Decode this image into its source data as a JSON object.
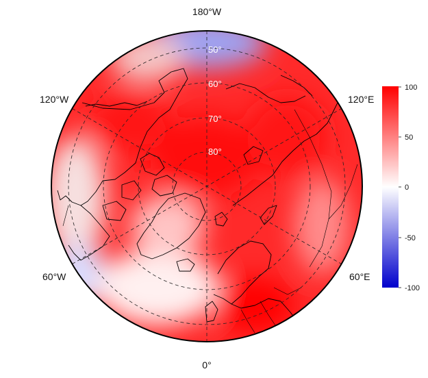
{
  "map": {
    "projection": "north-polar-stereographic",
    "longitude_labels": {
      "top": "180°W",
      "bottom": "0°",
      "upper_left": "120°W",
      "upper_right": "120°E",
      "lower_left": "60°W",
      "lower_right": "60°E"
    },
    "latitude_labels": [
      "50°",
      "60°",
      "70°",
      "80°"
    ],
    "grid": "dashed"
  },
  "colorbar": {
    "ticks": [
      "100",
      "50",
      "0",
      "-50",
      "-100"
    ],
    "min": -100,
    "max": 100,
    "colors": {
      "high": "#ff0000",
      "mid": "#ffffff",
      "low": "#0000cc"
    }
  }
}
